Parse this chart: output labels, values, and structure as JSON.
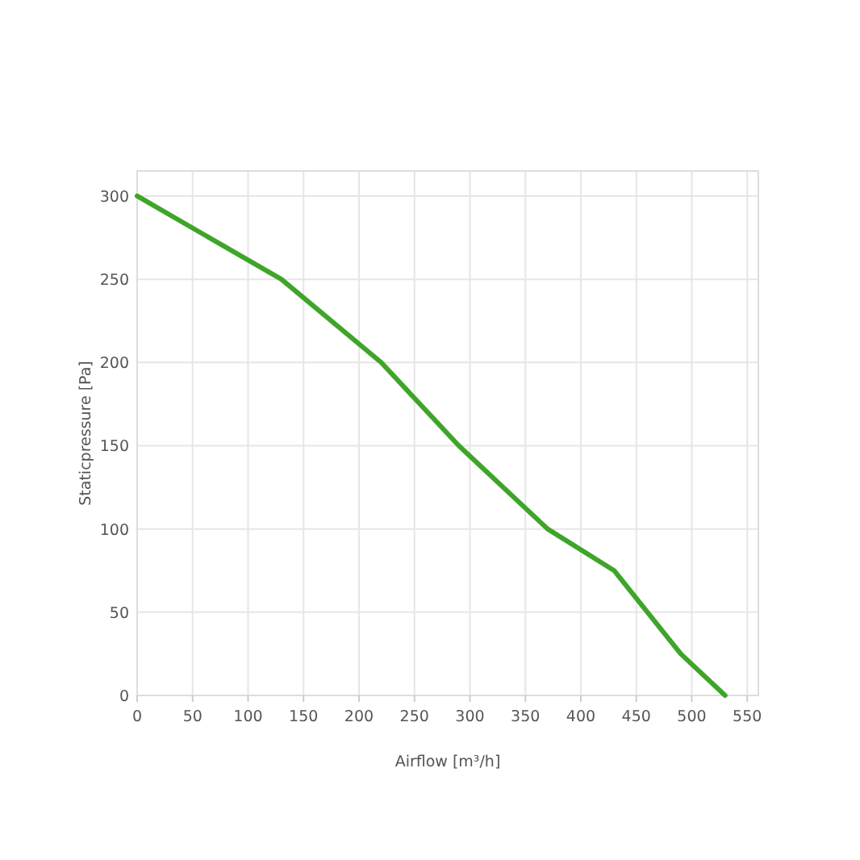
{
  "chart_data": {
    "type": "line",
    "xlabel": "Airflow [m³/h]",
    "ylabel": "Staticpressure [Pa]",
    "x": [
      0,
      130,
      220,
      290,
      370,
      430,
      490,
      530
    ],
    "series": [
      {
        "color": "#3fa52a",
        "values": [
          300,
          250,
          200,
          150,
          100,
          75,
          25,
          0
        ]
      }
    ],
    "xlim": [
      0,
      560
    ],
    "ylim": [
      0,
      315
    ],
    "xticks": [
      0,
      50,
      100,
      150,
      200,
      250,
      300,
      350,
      400,
      450,
      500,
      550
    ],
    "yticks": [
      0,
      50,
      100,
      150,
      200,
      250,
      300
    ],
    "grid": true
  }
}
